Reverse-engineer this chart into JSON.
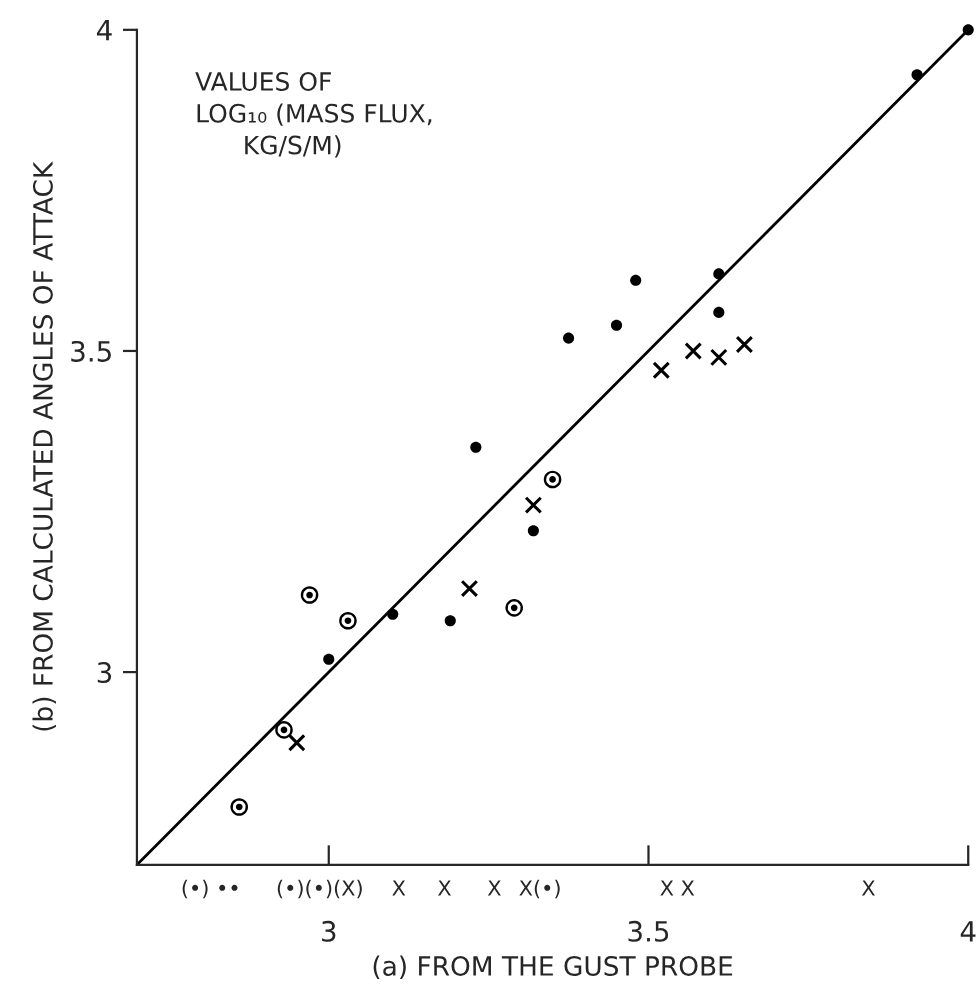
{
  "chart_data": {
    "type": "scatter",
    "xlabel": "(a) FROM THE GUST PROBE",
    "ylabel": "(b) FROM CALCULATED ANGLES OF ATTACK",
    "xlim": [
      2.7,
      4
    ],
    "ylim": [
      2.7,
      4
    ],
    "xticks": [
      3,
      3.5,
      4
    ],
    "yticks": [
      3,
      3.5,
      4
    ],
    "grid": false,
    "legend": false,
    "series": [
      {
        "marker": "circle",
        "color": "#000000",
        "x": [
          4.0,
          3.92,
          3.48,
          3.375,
          3.45,
          3.61,
          3.61,
          3.23,
          3.32,
          3.1,
          3.19,
          3.0
        ],
        "values": [
          4.0,
          3.93,
          3.61,
          3.52,
          3.54,
          3.62,
          3.56,
          3.35,
          3.22,
          3.09,
          3.08,
          3.02
        ]
      },
      {
        "marker": "circle",
        "color": "#000000",
        "x": [
          3.35,
          2.97,
          3.03,
          3.29,
          2.93,
          2.86
        ],
        "values": [
          3.3,
          3.12,
          3.08,
          3.1,
          2.91,
          2.79
        ]
      },
      {
        "marker": "cross",
        "color": "#000000",
        "x": [
          3.52,
          3.57,
          3.61,
          3.65,
          3.32,
          3.22,
          2.95
        ],
        "values": [
          3.47,
          3.5,
          3.49,
          3.51,
          3.26,
          3.13,
          2.89
        ]
      },
      {
        "type": "line",
        "marker": "none",
        "color": "#000000",
        "line_style": "solid",
        "x": [
          2.7,
          4
        ],
        "values": [
          2.7,
          4
        ]
      }
    ],
    "annotations": [
      "VALUES OF\nLOG₁₀ (MASS FLUX,\n      KG/S/M)",
      "(•)",
      "••",
      "(•)(•)(X)",
      "X",
      "X",
      "X",
      "X(•)",
      "X X",
      "X"
    ]
  }
}
